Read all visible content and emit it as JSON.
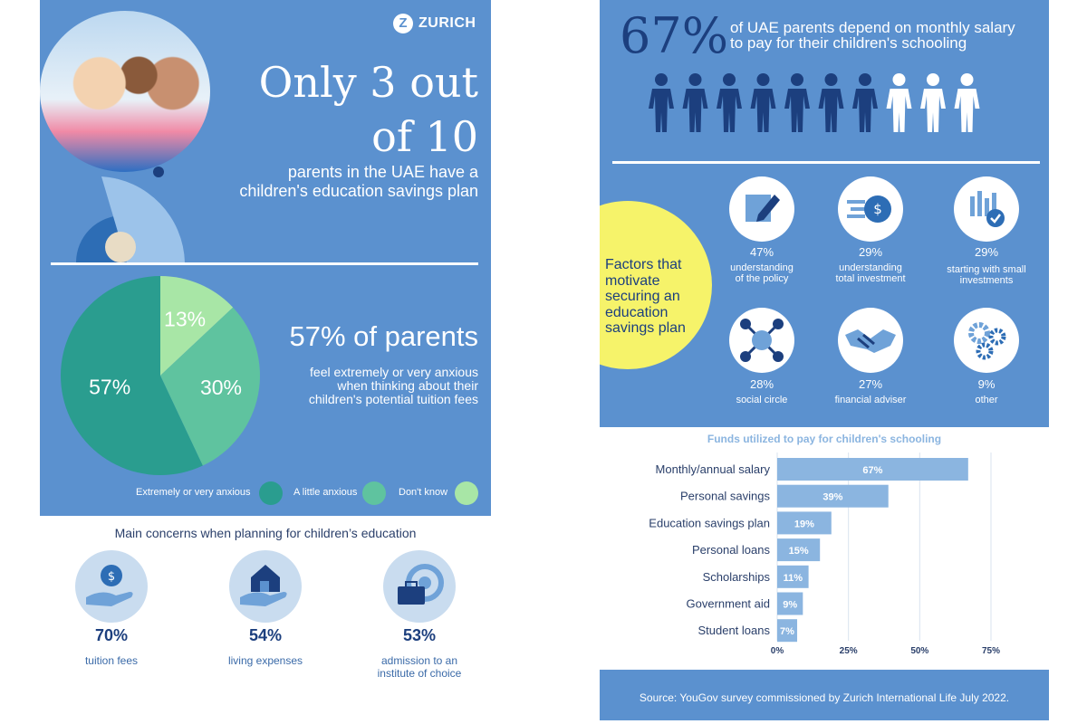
{
  "left": {
    "brand": "ZURICH",
    "headline_line1": "Only 3 out",
    "headline_line2": "of 10",
    "subhead_line1": "parents in the UAE have a",
    "subhead_line2": "children's education savings plan",
    "anxiety_title": "57% of parents",
    "anxiety_desc_line1": "feel extremely or very anxious",
    "anxiety_desc_line2": "when thinking about their",
    "anxiety_desc_line3": "children's potential tuition fees",
    "concerns_title": "Main concerns when planning for children’s education",
    "concerns": [
      {
        "pct": "70%",
        "label_line1": "tuition fees",
        "label_line2": ""
      },
      {
        "pct": "54%",
        "label_line1": "living expenses",
        "label_line2": ""
      },
      {
        "pct": "53%",
        "label_line1": "admission to an",
        "label_line2": "institute of choice"
      }
    ]
  },
  "right": {
    "big_pct": "67%",
    "stat_line1": "of UAE parents depend on monthly salary",
    "stat_line2": "to pay for their children's schooling",
    "people_total": 10,
    "people_filled": 7,
    "factors_title": [
      "Factors that",
      "motivate",
      "securing an",
      "education",
      "savings plan"
    ],
    "factors": [
      {
        "pct": "47%",
        "line1": "understanding",
        "line2": "of the policy",
        "icon": "pencil-note-icon"
      },
      {
        "pct": "29%",
        "line1": "understanding",
        "line2": "total investment",
        "icon": "dollar-coin-icon"
      },
      {
        "pct": "29%",
        "line1": "starting with small",
        "line2": "investments",
        "icon": "bar-check-icon"
      },
      {
        "pct": "28%",
        "line1": "social circle",
        "line2": "",
        "icon": "network-icon"
      },
      {
        "pct": "27%",
        "line1": "financial adviser",
        "line2": "",
        "icon": "handshake-icon"
      },
      {
        "pct": "9%",
        "line1": "other",
        "line2": "",
        "icon": "gears-icon"
      }
    ],
    "source": "Source: YouGov survey commissioned by Zurich International Life July 2022."
  },
  "colors": {
    "panel": "#5b91cf",
    "navy": "#1c3f7e",
    "teal_dark": "#2a9d8f",
    "teal_mid": "#5fc39f",
    "green_light": "#a8e6a6",
    "yellow": "#f6f36a",
    "bar": "#8bb5e0"
  },
  "chart_data": [
    {
      "type": "pie",
      "title": "",
      "categories": [
        "Extremely or very anxious",
        "A little anxious",
        "Don't know"
      ],
      "values": [
        57,
        30,
        13
      ],
      "value_labels": [
        "57%",
        "30%",
        "13%"
      ],
      "colors": [
        "#2a9d8f",
        "#5fc39f",
        "#a8e6a6"
      ],
      "legend": "bottom"
    },
    {
      "type": "bar",
      "orientation": "horizontal",
      "title": "Funds utilized to pay for children's schooling",
      "categories": [
        "Monthly/annual salary",
        "Personal savings",
        "Education savings plan",
        "Personal loans",
        "Scholarships",
        "Government aid",
        "Student loans"
      ],
      "values": [
        67,
        39,
        19,
        15,
        11,
        9,
        7
      ],
      "value_labels": [
        "67%",
        "39%",
        "19%",
        "15%",
        "11%",
        "9%",
        "7%"
      ],
      "xlim": [
        0,
        75
      ],
      "xticks": [
        "0%",
        "25%",
        "50%",
        "75%"
      ],
      "grid": true
    }
  ]
}
